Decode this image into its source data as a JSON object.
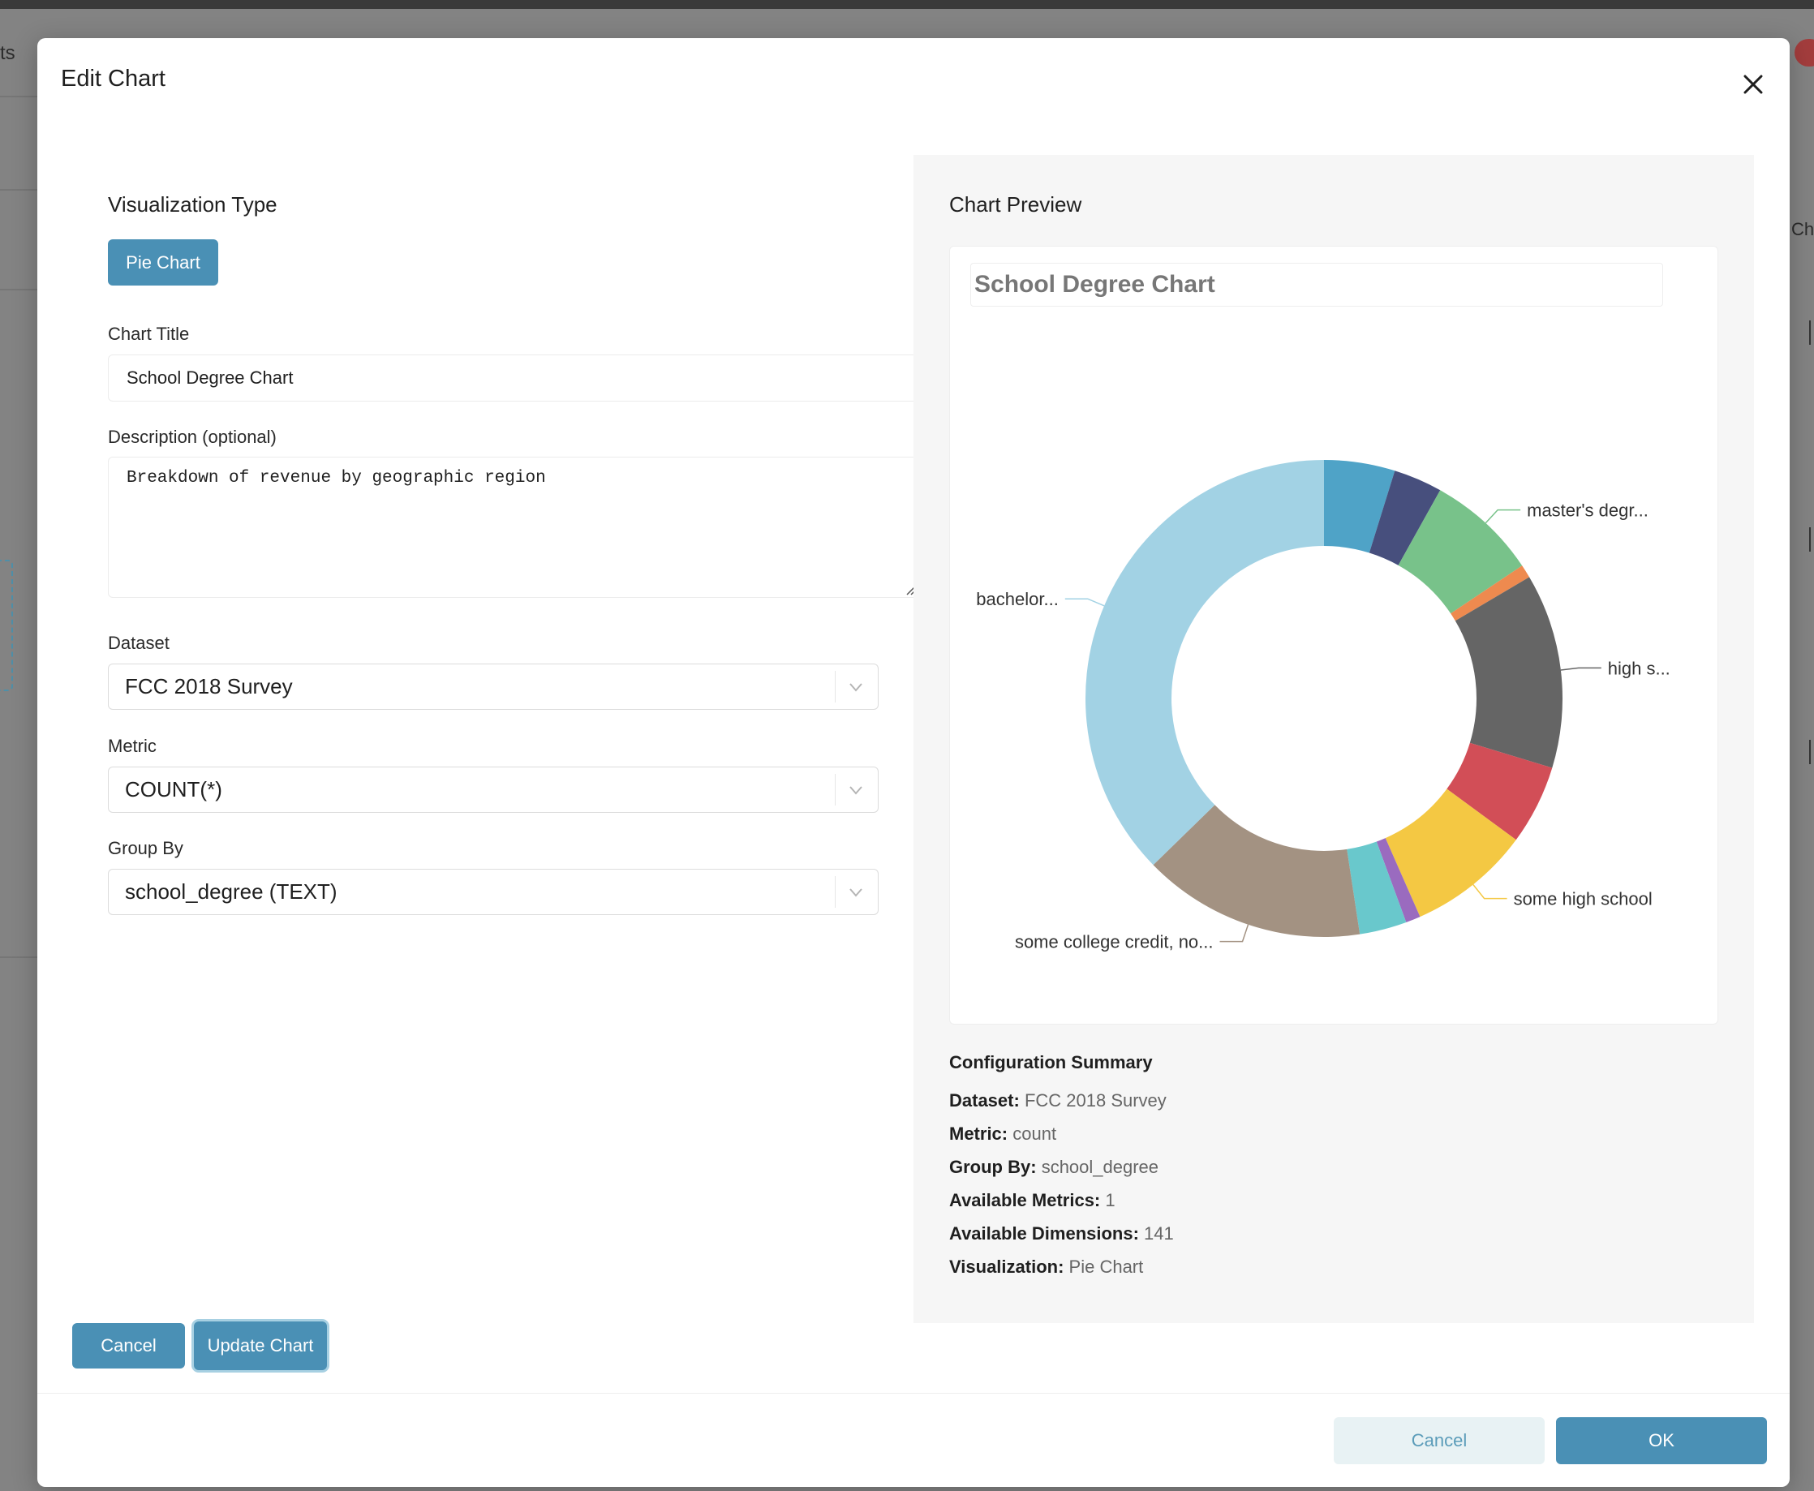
{
  "background": {
    "left_text": "ts",
    "right_text": "Ch"
  },
  "modal": {
    "title": "Edit Chart",
    "close_icon": "close-icon"
  },
  "form": {
    "viz_section_title": "Visualization Type",
    "viz_type_button": "Pie Chart",
    "chart_title_label": "Chart Title",
    "chart_title_value": "School Degree Chart",
    "description_label": "Description (optional)",
    "description_value": "Breakdown of revenue by geographic region",
    "dataset_label": "Dataset",
    "dataset_value": "FCC 2018 Survey",
    "metric_label": "Metric",
    "metric_value": "COUNT(*)",
    "group_by_label": "Group By",
    "group_by_value": "school_degree (TEXT)",
    "cancel_button": "Cancel",
    "update_button": "Update Chart"
  },
  "preview": {
    "section_title": "Chart Preview",
    "chart_title": "School Degree Chart",
    "summary_title": "Configuration Summary",
    "summary": [
      {
        "label": "Dataset:",
        "value": "FCC 2018 Survey"
      },
      {
        "label": "Metric:",
        "value": "count"
      },
      {
        "label": "Group By:",
        "value": "school_degree"
      },
      {
        "label": "Available Metrics:",
        "value": "1"
      },
      {
        "label": "Available Dimensions:",
        "value": "141"
      },
      {
        "label": "Visualization:",
        "value": "Pie Chart"
      }
    ]
  },
  "chart_data": {
    "type": "pie",
    "donut": true,
    "title": "School Degree Chart",
    "slices": [
      {
        "label": "",
        "value": 4.8,
        "color": "#4fa3c7"
      },
      {
        "label": "",
        "value": 3.3,
        "color": "#474f7d"
      },
      {
        "label": "master's degr...",
        "value": 7.5,
        "color": "#78c28a"
      },
      {
        "label": "",
        "value": 0.9,
        "color": "#ee8a4f"
      },
      {
        "label": "high s...",
        "value": 13.2,
        "color": "#656565"
      },
      {
        "label": "",
        "value": 5.4,
        "color": "#d24e57"
      },
      {
        "label": "some high school",
        "value": 8.3,
        "color": "#f4c843"
      },
      {
        "label": "",
        "value": 1.0,
        "color": "#9a6bbf"
      },
      {
        "label": "",
        "value": 3.2,
        "color": "#69c8cc"
      },
      {
        "label": "some college credit, no...",
        "value": 15.1,
        "color": "#a39282"
      },
      {
        "label": "bachelor...",
        "value": 37.3,
        "color": "#a2d2e4"
      }
    ]
  },
  "footer": {
    "cancel_button": "Cancel",
    "ok_button": "OK"
  }
}
